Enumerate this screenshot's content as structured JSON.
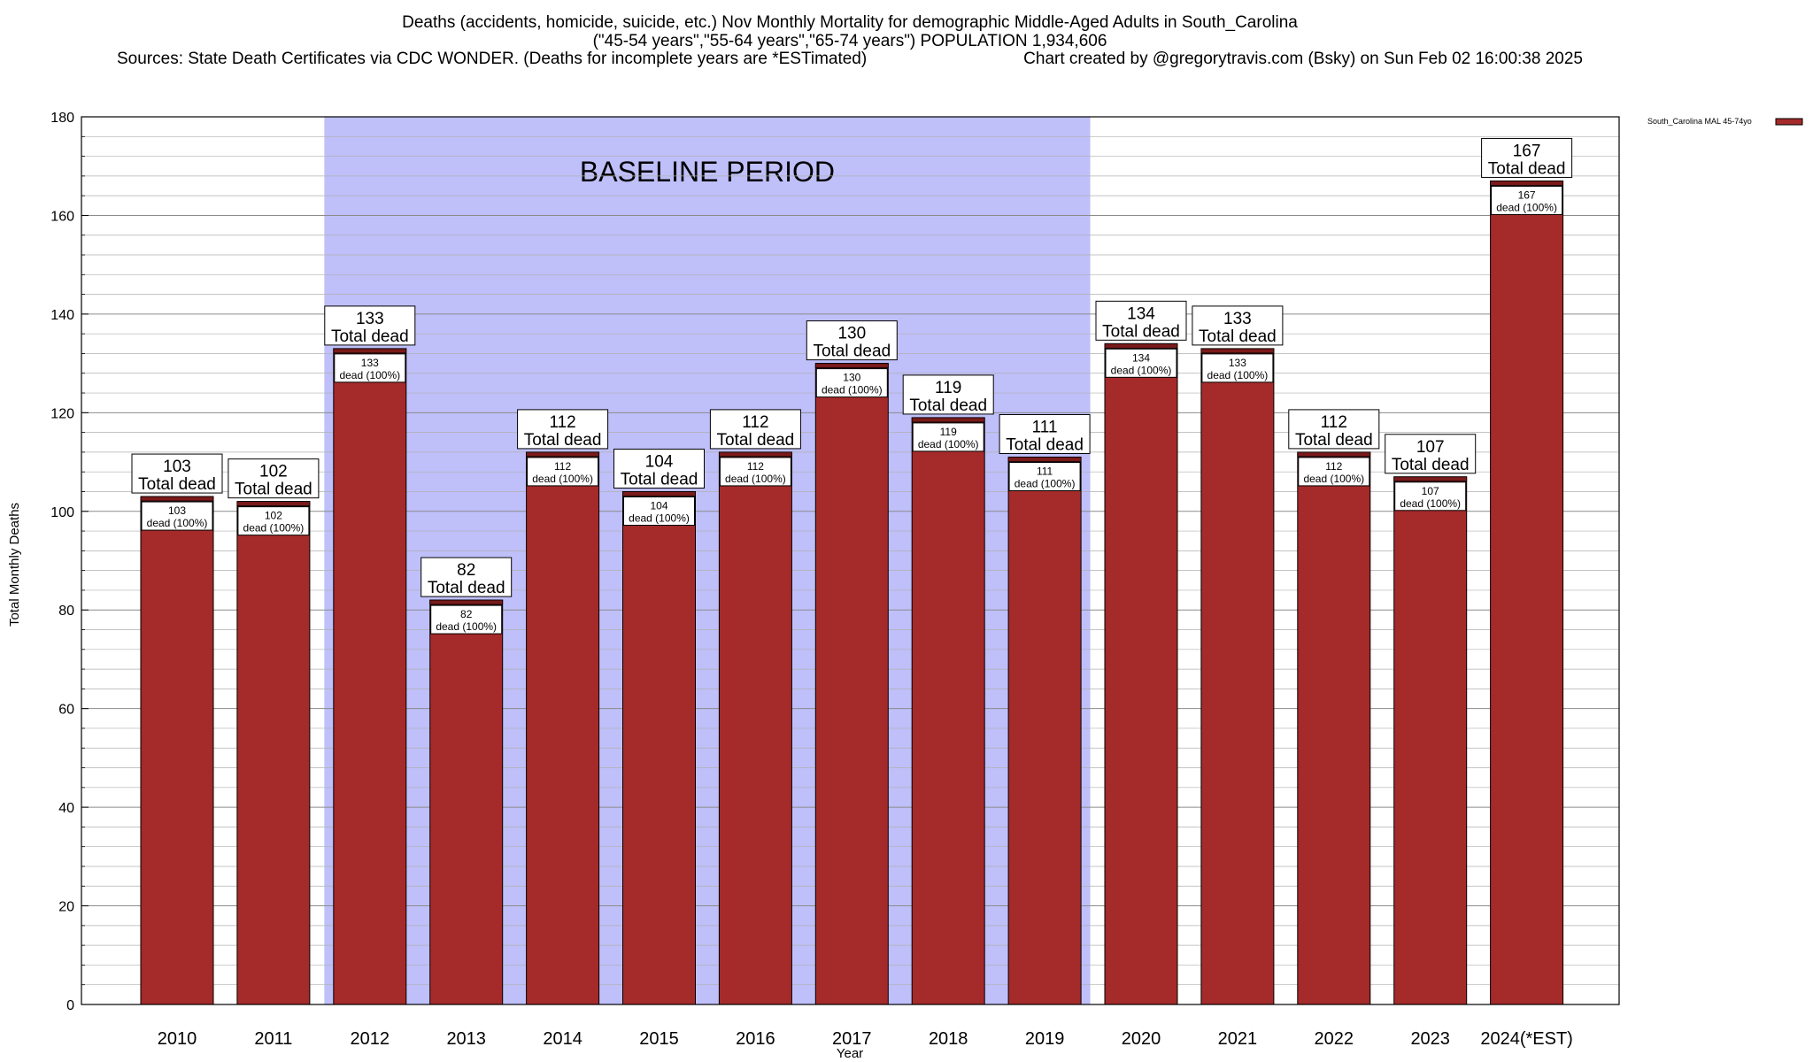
{
  "chart_data": {
    "type": "bar",
    "title_lines": [
      "Deaths (accidents, homicide, suicide, etc.) Nov Monthly Mortality for demographic Middle-Aged Adults in South_Carolina",
      "(\"45-54 years\",\"55-64 years\",\"65-74 years\") POPULATION 1,934,606",
      "Sources: State Death Certificates via CDC WONDER. (Deaths for incomplete years are *ESTimated)",
      "Chart created by @gregorytravis.com (Bsky) on Sun Feb 02 16:00:38 2025"
    ],
    "xlabel": "Year",
    "ylabel": "Total Monthly Deaths",
    "ylim": [
      0,
      180
    ],
    "yticks": [
      0,
      20,
      40,
      60,
      80,
      100,
      120,
      140,
      160,
      180
    ],
    "categories": [
      "2010",
      "2011",
      "2012",
      "2013",
      "2014",
      "2015",
      "2016",
      "2017",
      "2018",
      "2019",
      "2020",
      "2021",
      "2022",
      "2023",
      "2024(*EST)"
    ],
    "series": [
      {
        "name": "South_Carolina MAL 45-74yo",
        "values": [
          103,
          102,
          133,
          82,
          112,
          104,
          112,
          130,
          119,
          111,
          134,
          133,
          112,
          107,
          167
        ]
      }
    ],
    "top_label_suffix": "Total dead",
    "inner_label_suffix": "dead (100%)",
    "baseline_label": "BASELINE PERIOD",
    "baseline_range": [
      "2012",
      "2019"
    ],
    "grid": "horizontal",
    "legend_position": "top-right outside",
    "colors": {
      "bar": "#a52a2a",
      "bar_top": "#7a1a1a",
      "baseline_shade": "#bfbffa",
      "grid": "#b0b0b0"
    }
  }
}
